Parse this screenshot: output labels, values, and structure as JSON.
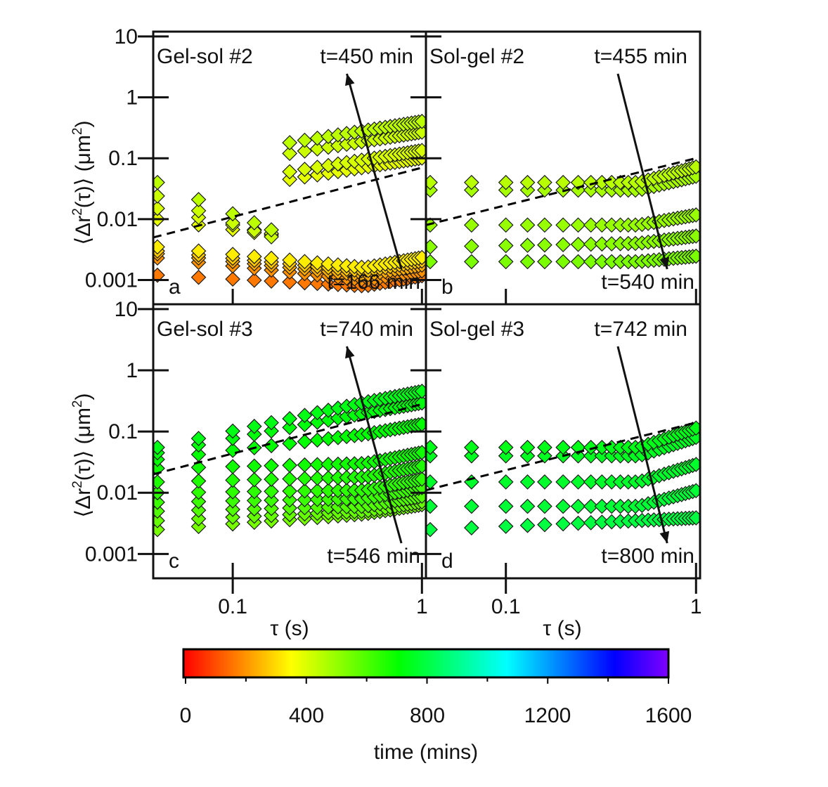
{
  "figure": {
    "ylabel_left_prefix": "⟨Δr",
    "ylabel_sup1": "2",
    "ylabel_mid": "(τ)⟩ (μm",
    "ylabel_sup2": "2",
    "ylabel_suffix": ")",
    "xlabel": "τ (s)",
    "colorbar_label": "time (mins)",
    "colorbar_ticks": [
      "0",
      "400",
      "800",
      "1200",
      "1600"
    ]
  },
  "colors": {
    "colormap": [
      "#ff0000",
      "#ff8000",
      "#ffff00",
      "#80ff00",
      "#00ff00",
      "#00ff80",
      "#00ffff",
      "#0080ff",
      "#0000ff",
      "#8000ff"
    ],
    "fit_line": "#000000"
  },
  "chart_data": [
    {
      "type": "scatter",
      "panel": "a",
      "panel_letter": "a",
      "label": "Gel-sol #2",
      "time_top": "t=450 min",
      "time_bottom": "t=166 min",
      "arrow": "up",
      "xscale": "log",
      "yscale": "log",
      "xlim": [
        0.038,
        1.05
      ],
      "ylim": [
        0.0004,
        12
      ],
      "x_ticks": [
        0.1,
        1
      ],
      "x_tick_labels": [
        "0.1",
        "1"
      ],
      "y_ticks": [
        0.001,
        0.01,
        0.1,
        1,
        10
      ],
      "y_tick_labels": [
        "0.001",
        "0.01",
        "0.1",
        "1",
        "10"
      ],
      "fit_line": {
        "x": [
          0.038,
          1
        ],
        "y": [
          0.005,
          0.07
        ]
      },
      "series": [
        {
          "time": 166,
          "a": 0.0012,
          "b": 0.0008,
          "c": 0.55,
          "d": 0.0,
          "cut": 0.5
        },
        {
          "time": 200,
          "a": 0.0023,
          "b": 0.001,
          "c": 0.5,
          "d": 0.0,
          "cut": 0.5
        },
        {
          "time": 240,
          "a": 0.0027,
          "b": 0.0012,
          "c": 0.55,
          "d": 0.0,
          "cut": 0.5
        },
        {
          "time": 280,
          "a": 0.003,
          "b": 0.0014,
          "c": 0.55,
          "d": 0.0,
          "cut": 0.5
        },
        {
          "time": 330,
          "a": 0.0035,
          "b": 0.0016,
          "c": 0.55,
          "d": 0.0,
          "cut": 0.5
        },
        {
          "time": 390,
          "a": 0.01,
          "b": 0.005,
          "c": 0.5,
          "d": 0.045,
          "cut": 0.2
        },
        {
          "time": 410,
          "a": 0.015,
          "b": 0.005,
          "c": 0.5,
          "d": 0.06,
          "cut": 0.2
        },
        {
          "time": 430,
          "a": 0.024,
          "b": 0.004,
          "c": 0.5,
          "d": 0.12,
          "cut": 0.2
        },
        {
          "time": 450,
          "a": 0.04,
          "b": 0.005,
          "c": 0.5,
          "d": 0.18,
          "cut": 0.2
        }
      ]
    },
    {
      "type": "scatter",
      "panel": "b",
      "panel_letter": "b",
      "label": "Sol-gel #2",
      "time_top": "t=455 min",
      "time_bottom": "t=540 min",
      "arrow": "down",
      "xscale": "log",
      "yscale": "log",
      "xlim": [
        0.038,
        1.05
      ],
      "ylim": [
        0.0004,
        12
      ],
      "x_ticks": [
        0.1,
        1
      ],
      "x_tick_labels": [
        "0.1",
        "1"
      ],
      "y_ticks": [
        0.001,
        0.01,
        0.1,
        1,
        10
      ],
      "y_tick_labels": [
        "",
        "",
        "",
        "",
        ""
      ],
      "fit_line": {
        "x": [
          0.038,
          1
        ],
        "y": [
          0.008,
          0.1
        ]
      },
      "series": [
        {
          "time": 540,
          "a": 0.002,
          "b": 0.002,
          "c": 0.3,
          "d": 0.0,
          "cut": 0.5
        },
        {
          "time": 520,
          "a": 0.0035,
          "b": 0.004,
          "c": 0.4,
          "d": 0.0,
          "cut": 0.5
        },
        {
          "time": 500,
          "a": 0.008,
          "b": 0.008,
          "c": 0.55,
          "d": 0.0,
          "cut": 0.5
        },
        {
          "time": 480,
          "a": 0.03,
          "b": 0.03,
          "c": 0.75,
          "d": 0.0,
          "cut": 0.5
        },
        {
          "time": 455,
          "a": 0.04,
          "b": 0.04,
          "c": 0.85,
          "d": 0.0,
          "cut": 0.5
        }
      ]
    },
    {
      "type": "scatter",
      "panel": "c",
      "panel_letter": "c",
      "label": "Gel-sol #3",
      "time_top": "t=740 min",
      "time_bottom": "t=546 min",
      "arrow": "up",
      "xscale": "log",
      "yscale": "log",
      "xlim": [
        0.038,
        1.05
      ],
      "ylim": [
        0.0004,
        12
      ],
      "x_ticks": [
        0.1,
        1
      ],
      "x_tick_labels": [
        "0.1",
        "1"
      ],
      "y_ticks": [
        0.001,
        0.01,
        0.1,
        1,
        10
      ],
      "y_tick_labels": [
        "0.001",
        "0.01",
        "0.1",
        "1",
        "10"
      ],
      "fit_line": {
        "x": [
          0.038,
          1
        ],
        "y": [
          0.02,
          0.28
        ]
      },
      "series": [
        {
          "time": 546,
          "a": 0.0025,
          "b": 0.0045,
          "c": 0.5,
          "d": 0.0,
          "cut": 0.5
        },
        {
          "time": 570,
          "a": 0.0035,
          "b": 0.005,
          "c": 0.5,
          "d": 0.0,
          "cut": 0.5
        },
        {
          "time": 600,
          "a": 0.005,
          "b": 0.006,
          "c": 0.55,
          "d": 0.0,
          "cut": 0.5
        },
        {
          "time": 630,
          "a": 0.007,
          "b": 0.008,
          "c": 0.6,
          "d": 0.0,
          "cut": 0.5
        },
        {
          "time": 650,
          "a": 0.01,
          "b": 0.011,
          "c": 0.6,
          "d": 0.0,
          "cut": 0.5
        },
        {
          "time": 670,
          "a": 0.015,
          "b": 0.018,
          "c": 0.6,
          "d": 0.0,
          "cut": 0.5
        },
        {
          "time": 690,
          "a": 0.025,
          "b": 0.03,
          "c": 0.6,
          "d": 0.0,
          "cut": 0.5
        },
        {
          "time": 710,
          "a": 0.035,
          "b": 0.09,
          "c": 0.55,
          "d": 0.0,
          "cut": 0.5
        },
        {
          "time": 725,
          "a": 0.045,
          "b": 0.2,
          "c": 0.55,
          "d": 0.0,
          "cut": 0.5
        },
        {
          "time": 740,
          "a": 0.055,
          "b": 0.3,
          "c": 0.6,
          "d": 0.0,
          "cut": 0.5
        }
      ]
    },
    {
      "type": "scatter",
      "panel": "d",
      "panel_letter": "d",
      "label": "Sol-gel #3",
      "time_top": "t=742 min",
      "time_bottom": "t=800 min",
      "arrow": "down",
      "xscale": "log",
      "yscale": "log",
      "xlim": [
        0.038,
        1.05
      ],
      "ylim": [
        0.0004,
        12
      ],
      "x_ticks": [
        0.1,
        1
      ],
      "x_tick_labels": [
        "0.1",
        "1"
      ],
      "y_ticks": [
        0.001,
        0.01,
        0.1,
        1,
        10
      ],
      "y_tick_labels": [
        "",
        "",
        "",
        "",
        ""
      ],
      "fit_line": {
        "x": [
          0.038,
          1
        ],
        "y": [
          0.011,
          0.14
        ]
      },
      "series": [
        {
          "time": 800,
          "a": 0.0025,
          "b": 0.0035,
          "c": 0.15,
          "d": 0.0,
          "cut": 0.5
        },
        {
          "time": 785,
          "a": 0.006,
          "b": 0.006,
          "c": 0.85,
          "d": 0.0,
          "cut": 0.5
        },
        {
          "time": 770,
          "a": 0.015,
          "b": 0.015,
          "c": 0.95,
          "d": 0.0,
          "cut": 0.5
        },
        {
          "time": 755,
          "a": 0.04,
          "b": 0.04,
          "c": 1.0,
          "d": 0.0,
          "cut": 0.5
        },
        {
          "time": 742,
          "a": 0.055,
          "b": 0.055,
          "c": 1.05,
          "d": 0.0,
          "cut": 0.5
        }
      ]
    }
  ]
}
